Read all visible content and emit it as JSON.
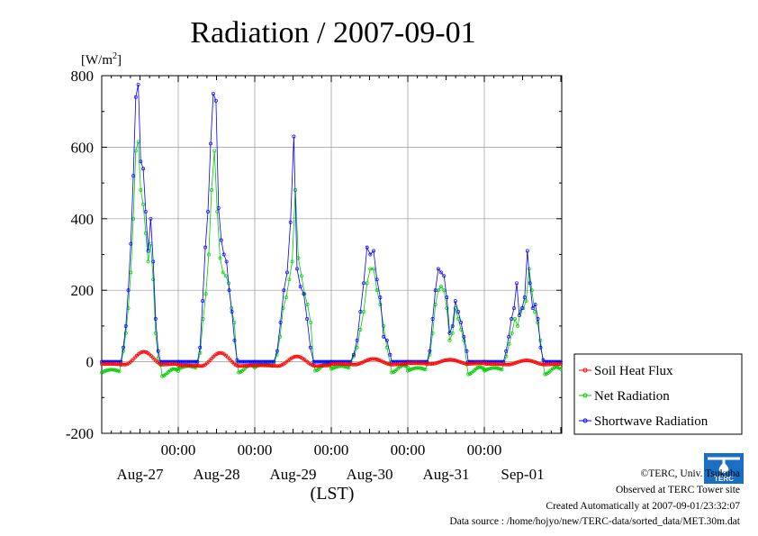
{
  "chart_data": {
    "type": "line",
    "title": "Radiation / 2007-09-01",
    "yunit": "[W/m",
    "yunit_sup": "2",
    "yunit_close": "]",
    "xlabel": "(LST)",
    "ylim": [
      -200,
      800
    ],
    "yticks": [
      -200,
      0,
      200,
      400,
      600,
      800
    ],
    "xlim_days": [
      0,
      6
    ],
    "time_tick_labels": [
      "00:00",
      "00:00",
      "00:00",
      "00:00",
      "00:00"
    ],
    "date_tick_labels": [
      "Aug-27",
      "Aug-28",
      "Aug-29",
      "Aug-30",
      "Aug-31",
      "Sep-01"
    ],
    "grid": true,
    "legend_position": "right-bottom",
    "series": [
      {
        "name": "Soil Heat Flux",
        "color": "#ff0000",
        "marker": "circle",
        "days": [
          {
            "peak": 28,
            "night": -8
          },
          {
            "peak": 25,
            "night": -12
          },
          {
            "peak": 15,
            "night": -12
          },
          {
            "peak": 8,
            "night": -8
          },
          {
            "peak": 6,
            "night": -6
          },
          {
            "peak": 4,
            "night": -8
          }
        ]
      },
      {
        "name": "Net Radiation",
        "color": "#00cc00",
        "marker": "circle",
        "days": [
          {
            "night": -30,
            "values": [
              0,
              30,
              80,
              150,
              250,
              400,
              590,
              615,
              480,
              440,
              360,
              280,
              330,
              230,
              80,
              10,
              -30
            ]
          },
          {
            "night": -20,
            "values": [
              0,
              25,
              120,
              190,
              300,
              480,
              590,
              420,
              290,
              250,
              240,
              220,
              150,
              110,
              50
            ]
          },
          {
            "night": -15,
            "values": [
              0,
              20,
              70,
              150,
              180,
              230,
              280,
              480,
              290,
              240,
              190,
              160,
              110,
              30
            ]
          },
          {
            "night": -20,
            "values": [
              0,
              15,
              40,
              90,
              140,
              220,
              260,
              260,
              200,
              160,
              100,
              40,
              15
            ]
          },
          {
            "night": -25,
            "values": [
              0,
              20,
              80,
              160,
              200,
              210,
              200,
              150,
              60,
              80,
              150,
              120,
              90,
              60,
              30
            ]
          },
          {
            "night": -25,
            "values": [
              0,
              15,
              50,
              80,
              120,
              100,
              140,
              150,
              170,
              260,
              200,
              140,
              110,
              60,
              20
            ]
          }
        ]
      },
      {
        "name": "Shortwave Radiation",
        "color": "#0000ff",
        "marker": "circle",
        "days": [
          {
            "values": [
              0,
              40,
              100,
              200,
              330,
              520,
              740,
              775,
              560,
              540,
              420,
              310,
              400,
              280,
              120,
              30,
              0
            ]
          },
          {
            "values": [
              0,
              40,
              170,
              320,
              420,
              610,
              750,
              730,
              430,
              340,
              300,
              280,
              200,
              140,
              60,
              5
            ]
          },
          {
            "values": [
              0,
              30,
              110,
              200,
              250,
              390,
              630,
              260,
              210,
              190,
              120,
              40,
              0
            ]
          },
          {
            "values": [
              0,
              20,
              60,
              140,
              220,
              320,
              300,
              310,
              230,
              180,
              70,
              60,
              20
            ]
          },
          {
            "values": [
              0,
              30,
              120,
              200,
              260,
              250,
              240,
              180,
              80,
              100,
              170,
              140,
              110,
              70,
              30
            ]
          },
          {
            "values": [
              0,
              30,
              70,
              120,
              150,
              220,
              130,
              150,
              180,
              310,
              220,
              150,
              160,
              120,
              40,
              5
            ]
          }
        ]
      }
    ]
  },
  "footer": {
    "copyright": "©TERC, Univ. Tsukuba",
    "observed": "Observed at TERC Tower site",
    "created": "Created Automatically at 2007-09-01/23:32:07",
    "source": "Data source : /home/hojyo/new/TERC-data/sorted_data/MET.30m.dat",
    "logo_text": "TERC"
  }
}
